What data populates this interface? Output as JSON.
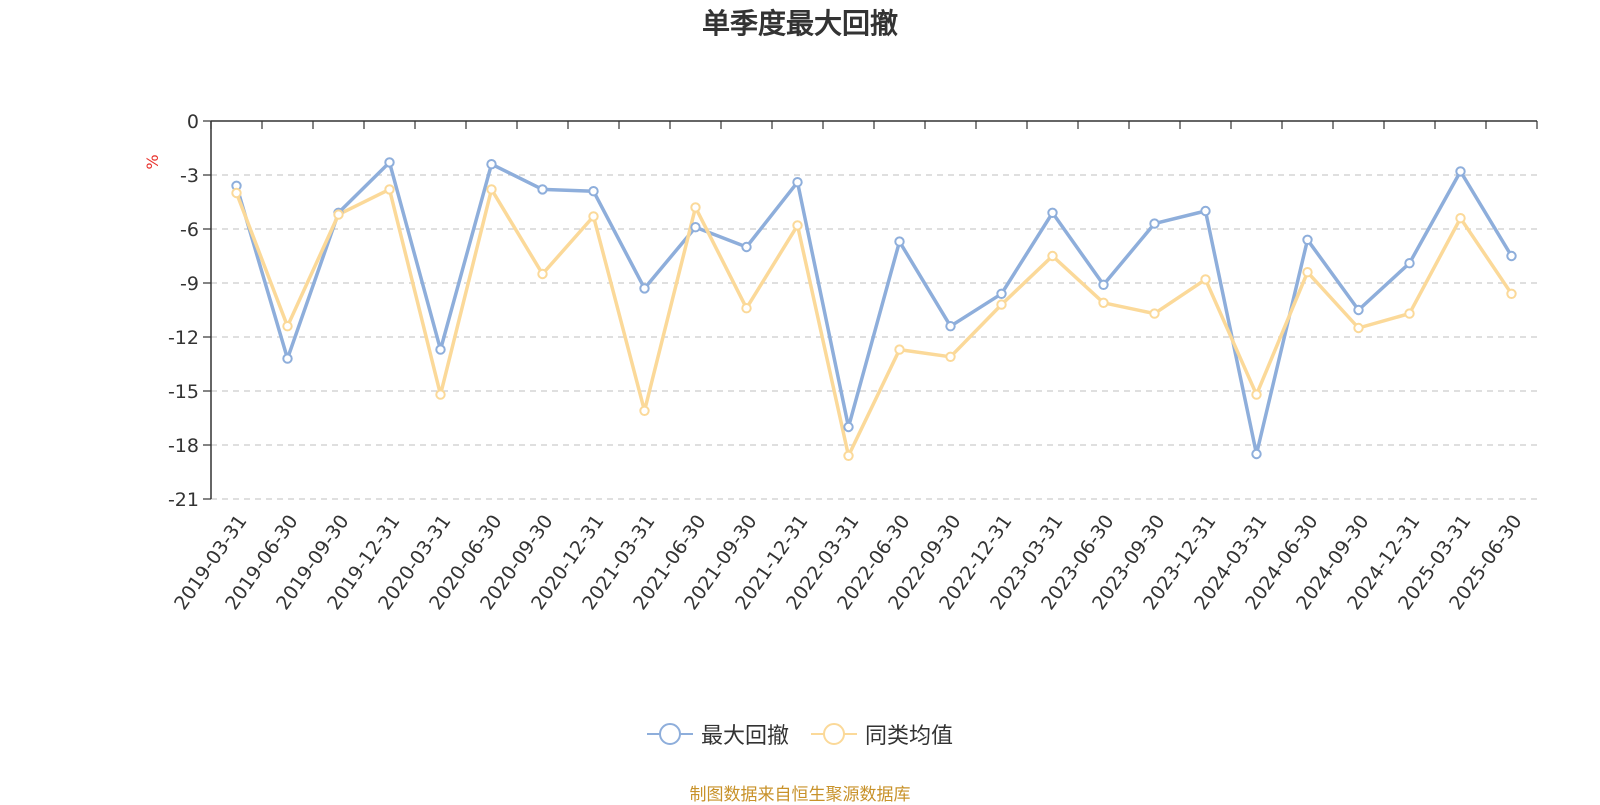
{
  "title": "单季度最大回撤",
  "source_note": "制图数据来自恒生聚源数据库",
  "colors": {
    "series_1": "#8eaedb",
    "series_2": "#fbd999",
    "axis": "#333333",
    "grid": "#cccccc",
    "unit": "#e8302a",
    "source": "#c8922a"
  },
  "chart_data": {
    "type": "line",
    "title": "单季度最大回撤",
    "xlabel": "",
    "ylabel": "%",
    "ylim": [
      -21,
      0
    ],
    "yticks": [
      0,
      -3,
      -6,
      -9,
      -12,
      -15,
      -18,
      -21
    ],
    "grid": true,
    "legend_position": "bottom-center",
    "categories": [
      "2019-03-31",
      "2019-06-30",
      "2019-09-30",
      "2019-12-31",
      "2020-03-31",
      "2020-06-30",
      "2020-09-30",
      "2020-12-31",
      "2021-03-31",
      "2021-06-30",
      "2021-09-30",
      "2021-12-31",
      "2022-03-31",
      "2022-06-30",
      "2022-09-30",
      "2022-12-31",
      "2023-03-31",
      "2023-06-30",
      "2023-09-30",
      "2023-12-31",
      "2024-03-31",
      "2024-06-30",
      "2024-09-30",
      "2024-12-31",
      "2025-03-31",
      "2025-06-30"
    ],
    "series": [
      {
        "name": "最大回撤",
        "color": "#8eaedb",
        "values": [
          -3.6,
          -13.2,
          -5.1,
          -2.3,
          -12.7,
          -2.4,
          -3.8,
          -3.9,
          -9.3,
          -5.9,
          -7.0,
          -3.4,
          -17.0,
          -6.7,
          -11.4,
          -9.6,
          -5.1,
          -9.1,
          -5.7,
          -5.0,
          -18.5,
          -6.6,
          -10.5,
          -7.9,
          -2.8,
          -7.5
        ]
      },
      {
        "name": "同类均值",
        "color": "#fbd999",
        "values": [
          -4.0,
          -11.4,
          -5.2,
          -3.8,
          -15.2,
          -3.8,
          -8.5,
          -5.3,
          -16.1,
          -4.8,
          -10.4,
          -5.8,
          -18.6,
          -12.7,
          -13.1,
          -10.2,
          -7.5,
          -10.1,
          -10.7,
          -8.8,
          -15.2,
          -8.4,
          -11.5,
          -10.7,
          -5.4,
          -9.6
        ]
      }
    ]
  }
}
